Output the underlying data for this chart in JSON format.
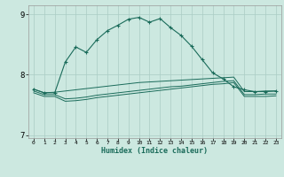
{
  "title": "",
  "xlabel": "Humidex (Indice chaleur)",
  "bg_color": "#cce8e0",
  "line_color": "#1a6b5a",
  "grid_color": "#aaccc4",
  "xlim": [
    -0.5,
    23.5
  ],
  "ylim": [
    6.95,
    9.15
  ],
  "yticks": [
    7,
    8,
    9
  ],
  "xticks": [
    0,
    1,
    2,
    3,
    4,
    5,
    6,
    7,
    8,
    9,
    10,
    11,
    12,
    13,
    14,
    15,
    16,
    17,
    18,
    19,
    20,
    21,
    22,
    23
  ],
  "line1_x": [
    0,
    1,
    2,
    3,
    4,
    5,
    6,
    7,
    8,
    9,
    10,
    11,
    12,
    13,
    14,
    15,
    16,
    17,
    18,
    19,
    20,
    21,
    22,
    23
  ],
  "line1_y": [
    7.76,
    7.7,
    7.7,
    8.21,
    8.46,
    8.37,
    8.58,
    8.73,
    8.82,
    8.92,
    8.95,
    8.87,
    8.93,
    8.78,
    8.65,
    8.47,
    8.25,
    8.03,
    7.93,
    7.8,
    7.75,
    7.72,
    7.72,
    7.73
  ],
  "line2_x": [
    0,
    1,
    2,
    3,
    4,
    5,
    6,
    7,
    8,
    9,
    10,
    11,
    12,
    13,
    14,
    15,
    16,
    17,
    18,
    19,
    20,
    21,
    22,
    23
  ],
  "line2_y": [
    7.76,
    7.7,
    7.71,
    7.73,
    7.75,
    7.77,
    7.79,
    7.81,
    7.83,
    7.85,
    7.87,
    7.88,
    7.89,
    7.9,
    7.91,
    7.92,
    7.93,
    7.94,
    7.95,
    7.96,
    7.72,
    7.72,
    7.73,
    7.73
  ],
  "line3_x": [
    0,
    1,
    2,
    3,
    4,
    5,
    6,
    7,
    8,
    9,
    10,
    11,
    12,
    13,
    14,
    15,
    16,
    17,
    18,
    19,
    20,
    21,
    22,
    23
  ],
  "line3_y": [
    7.73,
    7.67,
    7.67,
    7.6,
    7.61,
    7.63,
    7.66,
    7.68,
    7.7,
    7.72,
    7.74,
    7.76,
    7.78,
    7.8,
    7.81,
    7.83,
    7.85,
    7.87,
    7.89,
    7.9,
    7.67,
    7.67,
    7.68,
    7.68
  ],
  "line4_x": [
    0,
    1,
    2,
    3,
    4,
    5,
    6,
    7,
    8,
    9,
    10,
    11,
    12,
    13,
    14,
    15,
    16,
    17,
    18,
    19,
    20,
    21,
    22,
    23
  ],
  "line4_y": [
    7.7,
    7.64,
    7.64,
    7.56,
    7.57,
    7.59,
    7.62,
    7.64,
    7.66,
    7.68,
    7.7,
    7.72,
    7.74,
    7.76,
    7.78,
    7.8,
    7.82,
    7.84,
    7.85,
    7.87,
    7.64,
    7.64,
    7.64,
    7.65
  ]
}
